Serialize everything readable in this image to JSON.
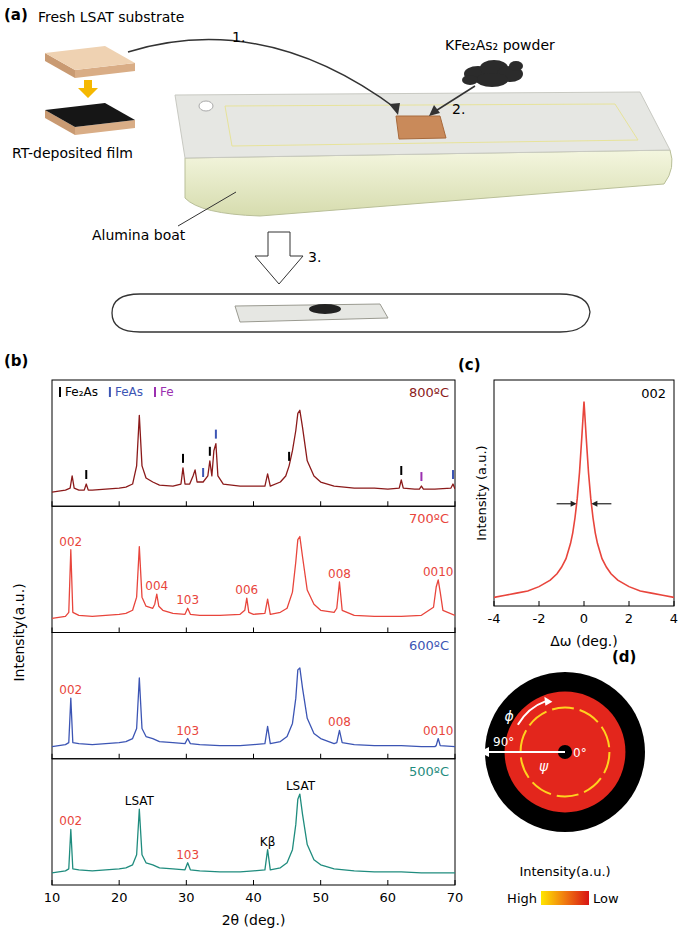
{
  "panel_labels": {
    "a": "(a)",
    "b": "(b)",
    "c": "(c)",
    "d": "(d)"
  },
  "diagram": {
    "texts": {
      "substrate": "Fresh LSAT substrate",
      "film": "RT-deposited film",
      "powder": "KFe₂As₂ powder",
      "boat": "Alumina boat"
    },
    "steps": [
      "1.",
      "2.",
      "3."
    ]
  },
  "chart_data": [
    {
      "type": "line",
      "title": "800ºC",
      "color": "#8b1a1a",
      "xlim": [
        10,
        70
      ],
      "xticks": [
        10,
        20,
        30,
        40,
        50,
        60,
        70
      ],
      "ylim": [
        0,
        1.25
      ],
      "tick_labels": false,
      "x": [
        10,
        11,
        12,
        12.7,
        13.0,
        13.3,
        14,
        14.8,
        15.1,
        15.4,
        16,
        18,
        20,
        21,
        22,
        22.6,
        23.0,
        23.4,
        24,
        25,
        26,
        28,
        29.2,
        29.5,
        29.8,
        30.5,
        31.0,
        31.3,
        31.6,
        32.5,
        33.2,
        33.5,
        33.8,
        34.1,
        34.4,
        34.7,
        35.5,
        38,
        40,
        41.7,
        42.1,
        42.5,
        44,
        44.8,
        45.3,
        45.8,
        46.3,
        46.6,
        46.9,
        47.3,
        48,
        49,
        50,
        52,
        55,
        58,
        60,
        61.7,
        62.0,
        62.3,
        64,
        64.7,
        65.0,
        65.3,
        67,
        69.4,
        69.7,
        70
      ],
      "values": [
        0.14,
        0.15,
        0.16,
        0.18,
        0.3,
        0.18,
        0.16,
        0.16,
        0.22,
        0.16,
        0.16,
        0.17,
        0.18,
        0.19,
        0.22,
        0.4,
        0.9,
        0.4,
        0.28,
        0.24,
        0.21,
        0.2,
        0.22,
        0.38,
        0.22,
        0.22,
        0.3,
        0.36,
        0.24,
        0.24,
        0.3,
        0.45,
        0.3,
        0.55,
        0.62,
        0.3,
        0.22,
        0.2,
        0.2,
        0.2,
        0.32,
        0.2,
        0.24,
        0.3,
        0.4,
        0.55,
        0.75,
        0.92,
        0.95,
        0.78,
        0.45,
        0.3,
        0.24,
        0.2,
        0.18,
        0.18,
        0.17,
        0.18,
        0.26,
        0.18,
        0.17,
        0.17,
        0.2,
        0.17,
        0.17,
        0.18,
        0.22,
        0.17
      ],
      "phase_markers": [
        {
          "name": "Fe₂As",
          "color": "#000000",
          "x": [
            15.1,
            29.5,
            33.5,
            45.3,
            62.0
          ]
        },
        {
          "name": "FeAs",
          "color": "#3c55b4",
          "x": [
            32.5,
            34.4,
            69.7
          ]
        },
        {
          "name": "Fe",
          "color": "#9b30b0",
          "x": [
            65.0
          ]
        }
      ]
    },
    {
      "type": "line",
      "title": "700ºC",
      "color": "#e8453c",
      "xlim": [
        10,
        70
      ],
      "xticks": [
        10,
        20,
        30,
        40,
        50,
        60,
        70
      ],
      "ylim": [
        0,
        1.25
      ],
      "tick_labels": false,
      "x": [
        10,
        11,
        12,
        12.5,
        12.8,
        13.1,
        14,
        16,
        18,
        20,
        21,
        22,
        22.6,
        23.0,
        23.4,
        24,
        25,
        25.3,
        25.6,
        25.9,
        26.5,
        28,
        29.8,
        30.2,
        30.6,
        32,
        35,
        38,
        38.7,
        39.0,
        39.3,
        40,
        41.7,
        42.1,
        42.5,
        44,
        45,
        45.8,
        46.3,
        46.6,
        46.9,
        47.3,
        48,
        49,
        50,
        52,
        52.4,
        52.8,
        53.2,
        55,
        58,
        60,
        62,
        65,
        66.8,
        67.2,
        67.5,
        67.8,
        68.2,
        70
      ],
      "values": [
        0.14,
        0.15,
        0.16,
        0.2,
        0.82,
        0.2,
        0.17,
        0.16,
        0.17,
        0.18,
        0.19,
        0.22,
        0.35,
        0.85,
        0.35,
        0.26,
        0.24,
        0.28,
        0.38,
        0.26,
        0.22,
        0.19,
        0.18,
        0.24,
        0.18,
        0.17,
        0.17,
        0.18,
        0.22,
        0.34,
        0.2,
        0.18,
        0.19,
        0.33,
        0.18,
        0.2,
        0.24,
        0.4,
        0.7,
        0.92,
        0.95,
        0.75,
        0.42,
        0.28,
        0.22,
        0.2,
        0.24,
        0.5,
        0.22,
        0.17,
        0.16,
        0.16,
        0.16,
        0.17,
        0.25,
        0.45,
        0.52,
        0.4,
        0.22,
        0.17
      ],
      "annotations": [
        {
          "text": "002",
          "x": 12.8,
          "color": "#e8453c"
        },
        {
          "text": "004",
          "x": 25.6,
          "color": "#e8453c"
        },
        {
          "text": "103",
          "x": 30.2,
          "color": "#e8453c"
        },
        {
          "text": "006",
          "x": 39.0,
          "color": "#e8453c"
        },
        {
          "text": "008",
          "x": 52.8,
          "color": "#e8453c"
        },
        {
          "text": "0010",
          "x": 67.5,
          "color": "#e8453c"
        }
      ]
    },
    {
      "type": "line",
      "title": "600ºC",
      "color": "#3c55b4",
      "xlim": [
        10,
        70
      ],
      "xticks": [
        10,
        20,
        30,
        40,
        50,
        60,
        70
      ],
      "ylim": [
        0,
        1.25
      ],
      "tick_labels": false,
      "x": [
        10,
        11,
        12,
        12.5,
        12.8,
        13.1,
        14,
        16,
        18,
        20,
        21,
        22,
        22.6,
        23.0,
        23.4,
        24,
        25,
        26,
        28,
        29.8,
        30.2,
        30.6,
        32,
        35,
        38,
        40,
        41.7,
        42.1,
        42.5,
        44,
        45,
        45.8,
        46.3,
        46.6,
        46.9,
        47.3,
        48,
        49,
        50,
        52,
        52.4,
        52.8,
        53.2,
        55,
        58,
        60,
        62,
        65,
        67,
        67.2,
        67.5,
        67.8,
        70
      ],
      "values": [
        0.12,
        0.13,
        0.14,
        0.16,
        0.6,
        0.16,
        0.15,
        0.14,
        0.15,
        0.16,
        0.17,
        0.2,
        0.3,
        0.8,
        0.3,
        0.22,
        0.2,
        0.17,
        0.16,
        0.15,
        0.2,
        0.15,
        0.14,
        0.13,
        0.13,
        0.14,
        0.15,
        0.32,
        0.15,
        0.17,
        0.22,
        0.35,
        0.6,
        0.88,
        0.9,
        0.7,
        0.4,
        0.25,
        0.2,
        0.15,
        0.16,
        0.28,
        0.16,
        0.14,
        0.13,
        0.13,
        0.13,
        0.12,
        0.12,
        0.13,
        0.2,
        0.13,
        0.12
      ],
      "annotations": [
        {
          "text": "002",
          "x": 12.8,
          "color": "#e8453c"
        },
        {
          "text": "103",
          "x": 30.2,
          "color": "#e8453c"
        },
        {
          "text": "008",
          "x": 52.8,
          "color": "#e8453c"
        },
        {
          "text": "0010",
          "x": 67.5,
          "color": "#e8453c"
        }
      ]
    },
    {
      "type": "line",
      "title": "500ºC",
      "color": "#1f8c7e",
      "xlim": [
        10,
        70
      ],
      "xticks": [
        10,
        20,
        30,
        40,
        50,
        60,
        70
      ],
      "ylim": [
        0,
        1.25
      ],
      "tick_labels": "x",
      "xlabel": "2θ (deg.)",
      "ylabel": "Intensity(a.u.)",
      "x": [
        10,
        11,
        12,
        12.5,
        12.8,
        13.1,
        14,
        16,
        18,
        20,
        21,
        22,
        22.6,
        23.0,
        23.4,
        24,
        25,
        26,
        28,
        29.8,
        30.2,
        30.6,
        32,
        35,
        38,
        40,
        41.7,
        42.1,
        42.5,
        44,
        45,
        45.8,
        46.3,
        46.6,
        46.9,
        47.3,
        48,
        49,
        50,
        52,
        55,
        58,
        60,
        62,
        65,
        67,
        70
      ],
      "values": [
        0.12,
        0.13,
        0.14,
        0.16,
        0.55,
        0.16,
        0.15,
        0.14,
        0.15,
        0.16,
        0.17,
        0.2,
        0.3,
        0.75,
        0.3,
        0.22,
        0.2,
        0.17,
        0.16,
        0.15,
        0.22,
        0.15,
        0.14,
        0.13,
        0.13,
        0.14,
        0.15,
        0.35,
        0.15,
        0.17,
        0.22,
        0.35,
        0.6,
        0.85,
        0.9,
        0.7,
        0.4,
        0.25,
        0.2,
        0.16,
        0.14,
        0.13,
        0.13,
        0.13,
        0.12,
        0.12,
        0.12
      ],
      "annotations": [
        {
          "text": "002",
          "x": 12.8,
          "color": "#e8453c"
        },
        {
          "text": "LSAT",
          "x": 23.0,
          "color": "#000000"
        },
        {
          "text": "103",
          "x": 30.2,
          "color": "#e8453c"
        },
        {
          "text": "Kβ",
          "x": 42.1,
          "color": "#000000"
        },
        {
          "text": "LSAT",
          "x": 47.0,
          "color": "#000000"
        }
      ]
    },
    {
      "type": "line",
      "title": "002",
      "color": "#e8453c",
      "xlim": [
        -4,
        4
      ],
      "xticks": [
        -4,
        -2,
        0,
        2,
        4
      ],
      "ylim": [
        0,
        1.05
      ],
      "tick_labels": "x",
      "xlabel": "Δω (deg.)",
      "ylabel": "Intensity (a.u.)",
      "x": [
        -4,
        -3.5,
        -3,
        -2.5,
        -2,
        -1.5,
        -1.2,
        -1,
        -0.8,
        -0.6,
        -0.5,
        -0.4,
        -0.3,
        -0.2,
        -0.1,
        0,
        0.1,
        0.2,
        0.3,
        0.4,
        0.5,
        0.6,
        0.8,
        1,
        1.2,
        1.5,
        2,
        2.5,
        3,
        3.5,
        4
      ],
      "values": [
        0.04,
        0.05,
        0.06,
        0.07,
        0.09,
        0.12,
        0.15,
        0.18,
        0.22,
        0.29,
        0.34,
        0.41,
        0.5,
        0.62,
        0.78,
        0.95,
        0.78,
        0.62,
        0.5,
        0.41,
        0.34,
        0.29,
        0.22,
        0.18,
        0.15,
        0.12,
        0.09,
        0.07,
        0.06,
        0.05,
        0.04
      ]
    },
    {
      "type": "pole_figure",
      "psi_range": [
        0,
        90
      ],
      "psi_ticks": [
        {
          "value": 0,
          "label": "0°"
        },
        {
          "value": 90,
          "label": "90°"
        }
      ],
      "ring_psi": 50,
      "intensity_psi": [
        8,
        68
      ],
      "phi_label": "ϕ",
      "psi_label": "ψ",
      "colorbar": {
        "title": "Intensity(a.u.)",
        "high": "High",
        "low": "Low"
      }
    }
  ]
}
